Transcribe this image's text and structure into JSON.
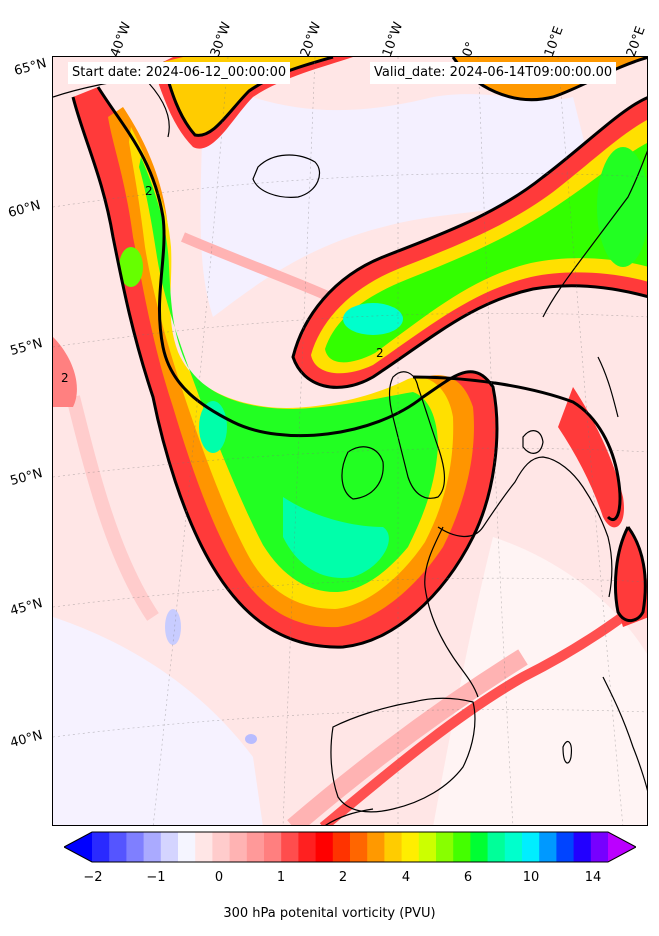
{
  "header": {
    "start_date": "Start date: 2024-06-12_00:00:00",
    "valid_date": "Valid_date: 2024-06-14T09:00:00.00"
  },
  "axes": {
    "longitude_labels": [
      "40°W",
      "30°W",
      "20°W",
      "10°W",
      "0°",
      "10°E",
      "20°E"
    ],
    "latitude_labels": [
      "65°N",
      "60°N",
      "55°N",
      "50°N",
      "45°N",
      "40°N"
    ]
  },
  "map": {
    "projection": "rotated conic",
    "field": "300 hPa potential vorticity",
    "contour_value_label": "2",
    "region": "North Atlantic and Western Europe"
  },
  "colorbar": {
    "label": "300 hPa potenital vorticity (PVU)",
    "tick_labels": [
      "−2",
      "−1",
      "0",
      "1",
      "2",
      "4",
      "6",
      "10",
      "14"
    ],
    "colors": [
      "#0000ff",
      "#2a2aff",
      "#5555ff",
      "#7f7fff",
      "#aaaaff",
      "#d4d4ff",
      "#f5f5ff",
      "#ffe6e6",
      "#ffcccc",
      "#ffb3b3",
      "#ff9999",
      "#ff7f7f",
      "#ff4d4d",
      "#ff2020",
      "#ff0000",
      "#ff3300",
      "#ff6600",
      "#ff9900",
      "#ffcc00",
      "#ffee00",
      "#ccff00",
      "#88ff00",
      "#44ff00",
      "#00ff33",
      "#00ff99",
      "#00ffcc",
      "#00eeff",
      "#0099ff",
      "#0044ff",
      "#2200ff",
      "#7700ff",
      "#bb00ff"
    ],
    "extend": "both"
  }
}
